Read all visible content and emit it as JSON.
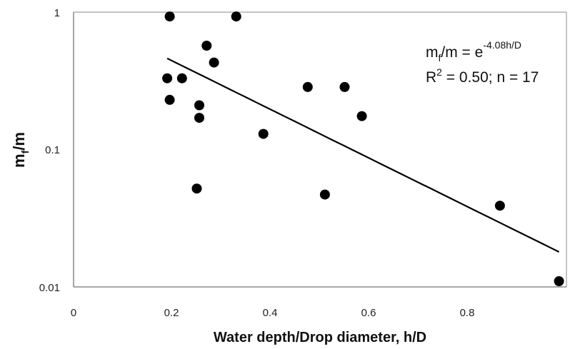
{
  "chart_data": {
    "type": "scatter",
    "xlabel": "Water depth/Drop diameter, h/D",
    "ylabel_main": "m",
    "ylabel_sub": "f",
    "ylabel_rest": "/m",
    "xlim": [
      0,
      1.0
    ],
    "ylim": [
      0.01,
      1
    ],
    "yscale": "log",
    "grid": false,
    "x_ticks": [
      "0",
      "0.2",
      "0.4",
      "0.6",
      "0.8"
    ],
    "y_ticks": [
      "1",
      "0.1",
      "0.01"
    ],
    "points": [
      {
        "x": 0.195,
        "y": 0.93
      },
      {
        "x": 0.33,
        "y": 0.93
      },
      {
        "x": 0.27,
        "y": 0.57
      },
      {
        "x": 0.285,
        "y": 0.43
      },
      {
        "x": 0.19,
        "y": 0.33
      },
      {
        "x": 0.22,
        "y": 0.33
      },
      {
        "x": 0.195,
        "y": 0.23
      },
      {
        "x": 0.255,
        "y": 0.21
      },
      {
        "x": 0.255,
        "y": 0.17
      },
      {
        "x": 0.25,
        "y": 0.052
      },
      {
        "x": 0.385,
        "y": 0.13
      },
      {
        "x": 0.475,
        "y": 0.285
      },
      {
        "x": 0.55,
        "y": 0.285
      },
      {
        "x": 0.585,
        "y": 0.175
      },
      {
        "x": 0.51,
        "y": 0.047
      },
      {
        "x": 0.865,
        "y": 0.039
      },
      {
        "x": 0.985,
        "y": 0.011
      }
    ],
    "fit": {
      "a": 1.0,
      "k": -4.08,
      "x_start": 0.19,
      "x_end": 0.985
    },
    "annotation": {
      "eq_lhs_main": "m",
      "eq_lhs_sub": "f",
      "eq_lhs_rest": "/m = e",
      "eq_exp": "-4.08h/D",
      "r2_prefix": "R",
      "r2_sup": "2",
      "r2_rest": " = 0.50; n = 17"
    },
    "colors": {
      "points": "#000000",
      "line": "#000000",
      "axis": "#888888"
    }
  }
}
